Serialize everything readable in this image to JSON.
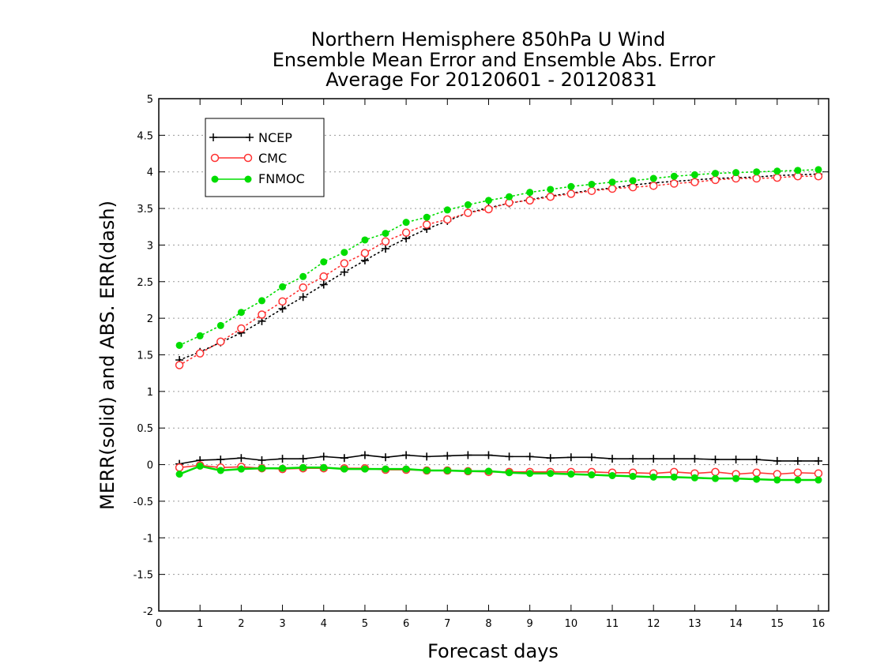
{
  "chart_data": {
    "type": "line",
    "title_lines": [
      "Northern Hemisphere 850hPa U Wind",
      "Ensemble Mean Error and Ensemble Abs. Error",
      "Average For 20120601 - 20120831"
    ],
    "xlabel": "Forecast days",
    "ylabel": "MERR(solid) and ABS. ERR(dash)",
    "xlim": [
      0,
      16.25
    ],
    "ylim": [
      -2,
      5
    ],
    "x_ticks": [
      "0",
      "1",
      "2",
      "3",
      "4",
      "5",
      "6",
      "7",
      "8",
      "9",
      "10",
      "11",
      "12",
      "13",
      "14",
      "15",
      "16"
    ],
    "y_ticks": [
      "5",
      "4.5",
      "4",
      "3.5",
      "3",
      "2.5",
      "2",
      "1.5",
      "1",
      "0.5",
      "0",
      "-0.5",
      "-1",
      "-1.5",
      "-2"
    ],
    "y_tick_values": [
      5,
      4.5,
      4,
      3.5,
      3,
      2.5,
      2,
      1.5,
      1,
      0.5,
      0,
      -0.5,
      -1,
      -1.5,
      -2
    ],
    "grid": "horizontal dotted",
    "legend_position": "top-left",
    "x": [
      0.5,
      1,
      1.5,
      2,
      2.5,
      3,
      3.5,
      4,
      4.5,
      5,
      5.5,
      6,
      6.5,
      7,
      7.5,
      8,
      8.5,
      9,
      9.5,
      10,
      10.5,
      11,
      11.5,
      12,
      12.5,
      13,
      13.5,
      14,
      14.5,
      15,
      15.5,
      16
    ],
    "series": [
      {
        "name": "NCEP",
        "color": "#000000",
        "marker": "plus",
        "abs_err": [
          1.43,
          1.54,
          1.67,
          1.8,
          1.96,
          2.13,
          2.29,
          2.46,
          2.63,
          2.79,
          2.95,
          3.09,
          3.22,
          3.33,
          3.44,
          3.51,
          3.57,
          3.62,
          3.67,
          3.71,
          3.75,
          3.78,
          3.82,
          3.85,
          3.87,
          3.89,
          3.91,
          3.92,
          3.93,
          3.95,
          3.96,
          3.97
        ],
        "mean_err": [
          0.01,
          0.06,
          0.07,
          0.09,
          0.06,
          0.08,
          0.08,
          0.11,
          0.09,
          0.13,
          0.1,
          0.13,
          0.11,
          0.12,
          0.13,
          0.13,
          0.11,
          0.11,
          0.09,
          0.1,
          0.1,
          0.08,
          0.08,
          0.08,
          0.08,
          0.08,
          0.07,
          0.07,
          0.07,
          0.05,
          0.05,
          0.05
        ]
      },
      {
        "name": "CMC",
        "color": "#ff3333",
        "marker": "open-circle",
        "abs_err": [
          1.36,
          1.52,
          1.68,
          1.86,
          2.05,
          2.23,
          2.42,
          2.57,
          2.75,
          2.89,
          3.05,
          3.17,
          3.28,
          3.35,
          3.44,
          3.49,
          3.58,
          3.61,
          3.66,
          3.7,
          3.74,
          3.77,
          3.79,
          3.81,
          3.84,
          3.86,
          3.89,
          3.91,
          3.91,
          3.92,
          3.94,
          3.94
        ],
        "mean_err": [
          -0.04,
          -0.01,
          -0.04,
          -0.03,
          -0.05,
          -0.06,
          -0.05,
          -0.05,
          -0.05,
          -0.05,
          -0.07,
          -0.07,
          -0.08,
          -0.08,
          -0.09,
          -0.1,
          -0.1,
          -0.1,
          -0.1,
          -0.1,
          -0.1,
          -0.11,
          -0.11,
          -0.12,
          -0.1,
          -0.12,
          -0.1,
          -0.13,
          -0.11,
          -0.13,
          -0.11,
          -0.12
        ]
      },
      {
        "name": "FNMOC",
        "color": "#00dd00",
        "marker": "filled-circle",
        "abs_err": [
          1.63,
          1.76,
          1.9,
          2.08,
          2.24,
          2.43,
          2.57,
          2.77,
          2.9,
          3.07,
          3.16,
          3.31,
          3.38,
          3.48,
          3.55,
          3.61,
          3.66,
          3.72,
          3.76,
          3.8,
          3.83,
          3.86,
          3.88,
          3.91,
          3.94,
          3.96,
          3.98,
          3.99,
          4.0,
          4.01,
          4.02,
          4.03
        ],
        "mean_err": [
          -0.13,
          -0.02,
          -0.08,
          -0.06,
          -0.05,
          -0.05,
          -0.04,
          -0.04,
          -0.06,
          -0.06,
          -0.06,
          -0.06,
          -0.08,
          -0.08,
          -0.09,
          -0.09,
          -0.11,
          -0.12,
          -0.12,
          -0.13,
          -0.14,
          -0.15,
          -0.16,
          -0.17,
          -0.17,
          -0.18,
          -0.19,
          -0.19,
          -0.2,
          -0.21,
          -0.21,
          -0.21
        ]
      }
    ]
  }
}
